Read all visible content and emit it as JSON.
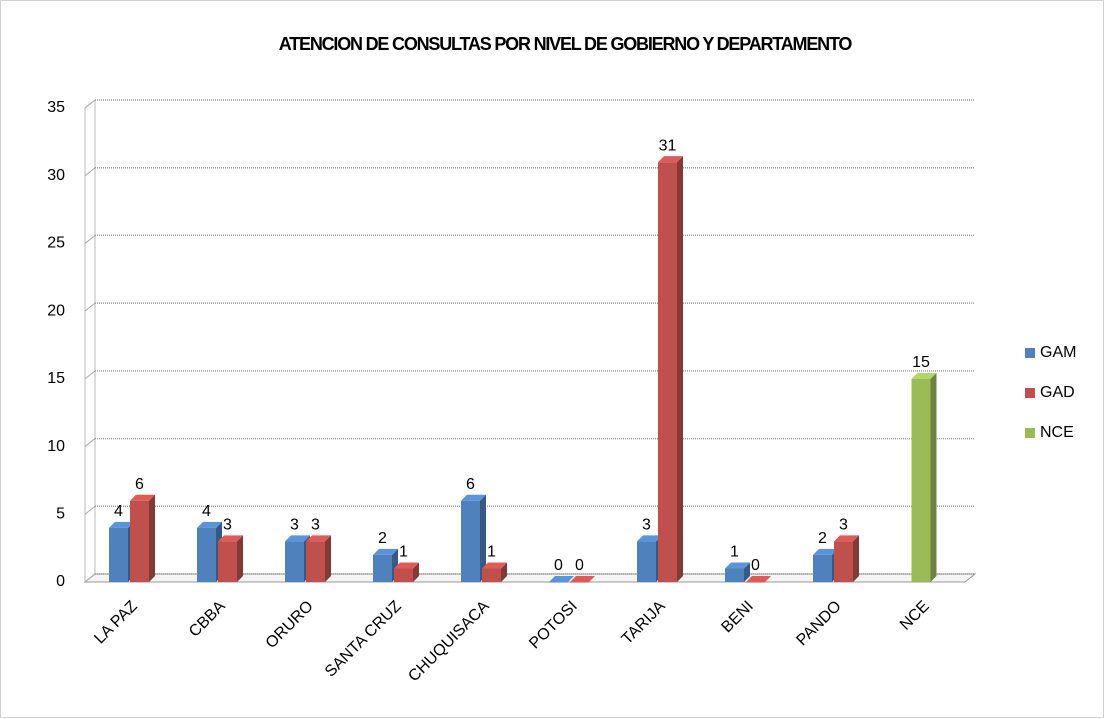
{
  "chart_data": {
    "type": "bar3d",
    "title": "ATENCION DE CONSULTAS POR NIVEL DE GOBIERNO Y DEPARTAMENTO",
    "categories": [
      "LA PAZ",
      "CBBA",
      "ORURO",
      "SANTA CRUZ",
      "CHUQUISACA",
      "POTOSI",
      "TARIJA",
      "BENI",
      "PANDO",
      "NCE"
    ],
    "series": [
      {
        "name": "GAM",
        "color": "#4f81bd",
        "values": [
          4,
          4,
          3,
          2,
          6,
          0,
          3,
          1,
          2,
          null
        ]
      },
      {
        "name": "GAD",
        "color": "#c0504d",
        "values": [
          6,
          3,
          3,
          1,
          1,
          0,
          31,
          0,
          3,
          null
        ]
      },
      {
        "name": "NCE",
        "color": "#9bbb59",
        "values": [
          null,
          null,
          null,
          null,
          null,
          null,
          null,
          null,
          null,
          15
        ]
      }
    ],
    "ylim": [
      0,
      35
    ],
    "yticks": [
      0,
      5,
      10,
      15,
      20,
      25,
      30,
      35
    ],
    "grid": true,
    "legend": "right"
  }
}
